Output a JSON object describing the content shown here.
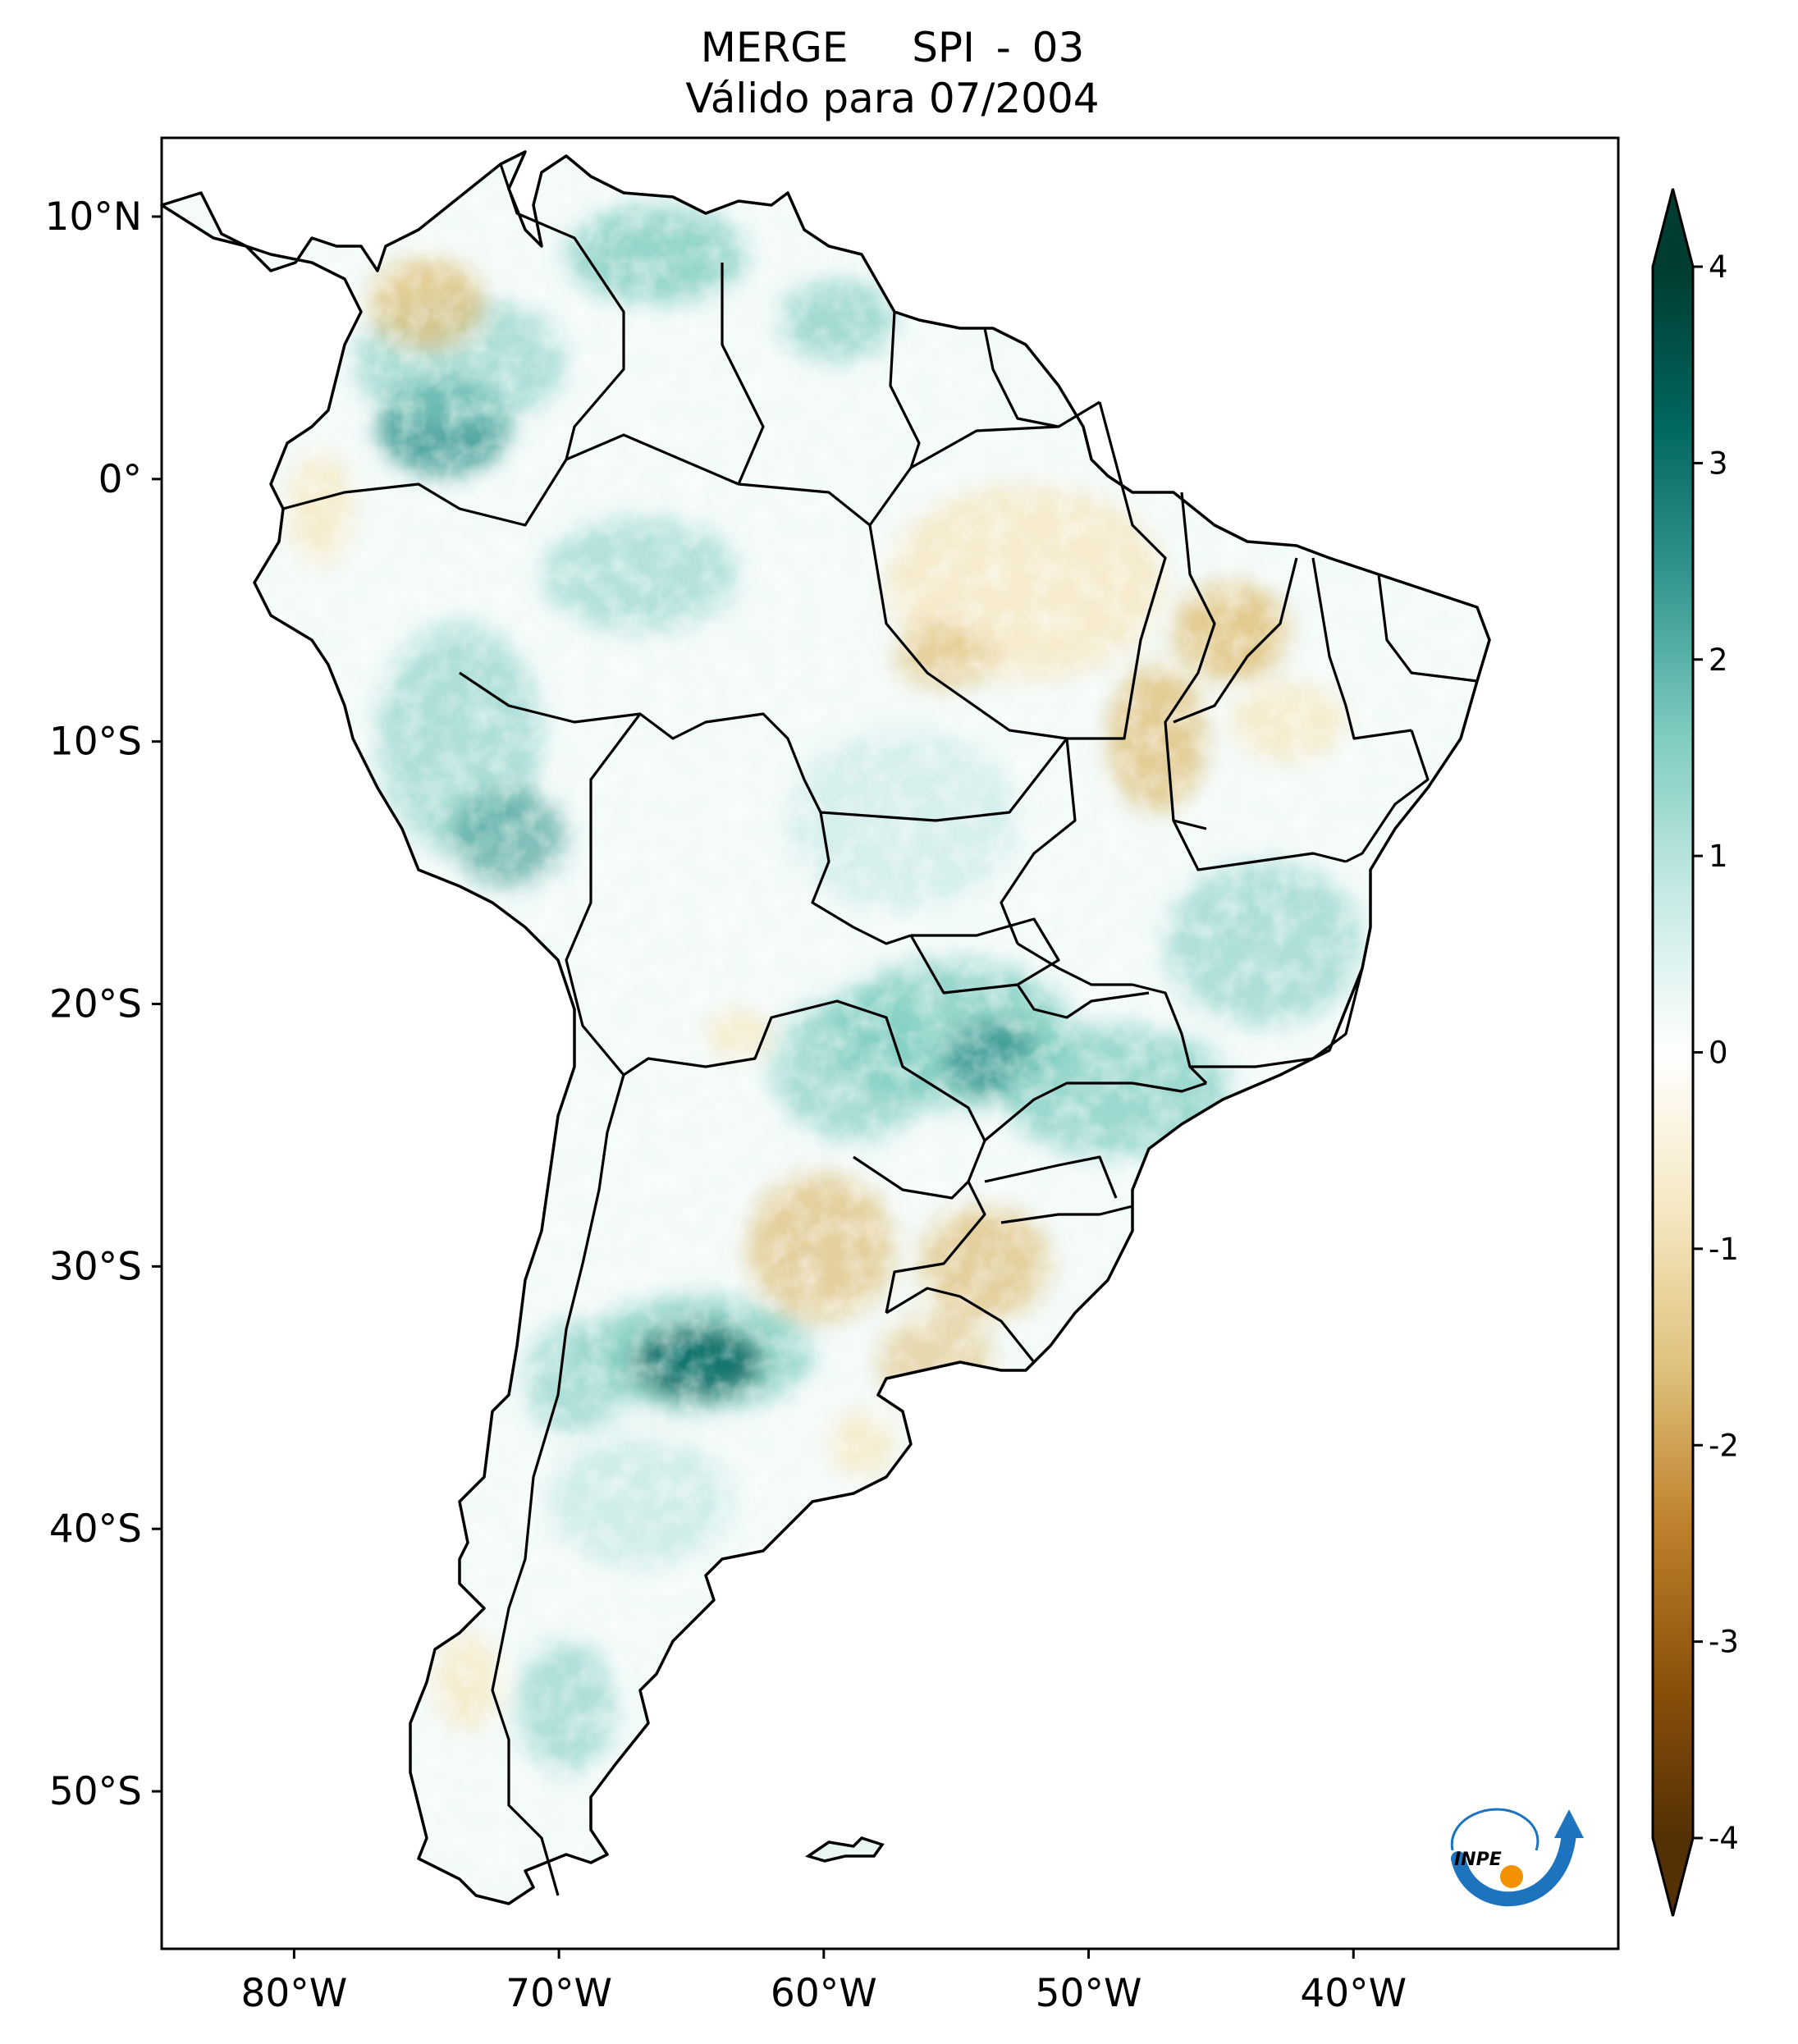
{
  "title": {
    "line1": "MERGE   SPI - 03",
    "line2": "Válido para 07/2004"
  },
  "map": {
    "lat_ticks": [
      {
        "value": 10,
        "label": "10°N"
      },
      {
        "value": 0,
        "label": "0°"
      },
      {
        "value": -10,
        "label": "10°S"
      },
      {
        "value": -20,
        "label": "20°S"
      },
      {
        "value": -30,
        "label": "30°S"
      },
      {
        "value": -40,
        "label": "40°S"
      },
      {
        "value": -50,
        "label": "50°S"
      }
    ],
    "lon_ticks": [
      {
        "value": -80,
        "label": "80°W"
      },
      {
        "value": -70,
        "label": "70°W"
      },
      {
        "value": -60,
        "label": "60°W"
      },
      {
        "value": -50,
        "label": "50°W"
      },
      {
        "value": -40,
        "label": "40°W"
      }
    ],
    "lon_range": [
      -85,
      -30
    ],
    "lat_range": [
      -56,
      13
    ]
  },
  "colorbar": {
    "range": [
      -4,
      4
    ],
    "extend": "both",
    "ticks": [
      {
        "value": 4,
        "label": "4"
      },
      {
        "value": 3,
        "label": "3"
      },
      {
        "value": 2,
        "label": "2"
      },
      {
        "value": 1,
        "label": "1"
      },
      {
        "value": 0,
        "label": "0"
      },
      {
        "value": -1,
        "label": "-1"
      },
      {
        "value": -2,
        "label": "-2"
      },
      {
        "value": -3,
        "label": "-3"
      },
      {
        "value": -4,
        "label": "-4"
      }
    ],
    "colors": [
      "#543005",
      "#8c510a",
      "#bf812d",
      "#dfc27d",
      "#f6e8c3",
      "#ffffff",
      "#c7eae5",
      "#80cdc1",
      "#35978f",
      "#01665e",
      "#003c30"
    ]
  },
  "logo": {
    "text": "INPE",
    "colors": [
      "#1e73be",
      "#f39200"
    ]
  }
}
